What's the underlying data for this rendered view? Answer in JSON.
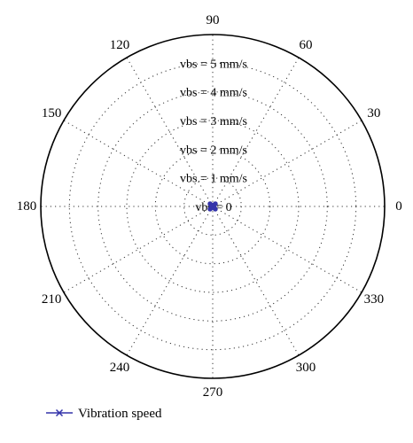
{
  "chart_data": {
    "type": "polar",
    "angle_ticks": [
      "0",
      "30",
      "60",
      "90",
      "120",
      "150",
      "180",
      "210",
      "240",
      "270",
      "300",
      "330"
    ],
    "radial_labels": [
      "vbs = 0",
      "vbs = 1 mm/s",
      "vbs = 2 mm/s",
      "vbs = 3 mm/s",
      "vbs = 4 mm/s",
      "vbs = 5 mm/s"
    ],
    "rlim": [
      0,
      5
    ],
    "grid": true,
    "legend": {
      "position": "bottom-left"
    },
    "series": [
      {
        "name": "Vibration speed",
        "color": "#3333aa",
        "marker": "x",
        "theta": [
          0,
          30,
          60,
          90,
          120,
          150,
          180,
          210,
          240,
          270,
          300,
          330
        ],
        "r": [
          0.05,
          0.05,
          0.05,
          0.05,
          0.05,
          0.05,
          0.05,
          0.05,
          0.05,
          0.05,
          0.05,
          0.05
        ]
      }
    ]
  }
}
